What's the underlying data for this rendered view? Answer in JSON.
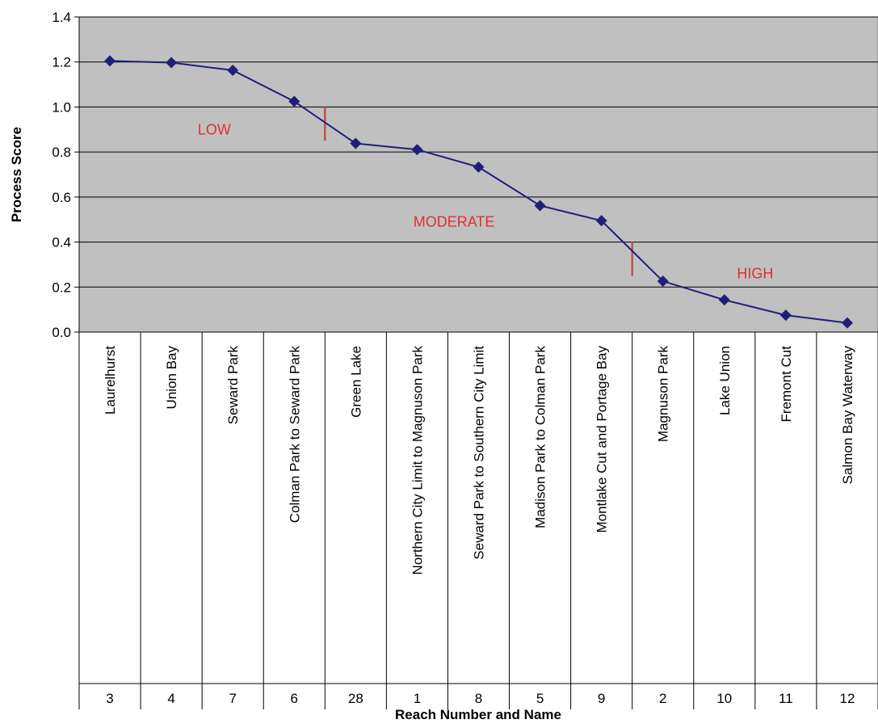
{
  "chart_data": {
    "type": "line",
    "title": "",
    "xlabel": "Reach Number and Name",
    "ylabel": "Process Score",
    "ylim": [
      0,
      1.4
    ],
    "yticks": [
      "0.0",
      "0.2",
      "0.4",
      "0.6",
      "0.8",
      "1.0",
      "1.2",
      "1.4"
    ],
    "grid": true,
    "legend": "none",
    "categories": [
      {
        "name": "Laurelhurst",
        "number": "3"
      },
      {
        "name": "Union Bay",
        "number": "4"
      },
      {
        "name": "Seward Park",
        "number": "7"
      },
      {
        "name": "Colman Park to Seward Park",
        "number": "6"
      },
      {
        "name": "Green Lake",
        "number": "28"
      },
      {
        "name": "Northern City Limit to Magnuson Park",
        "number": "1"
      },
      {
        "name": "Seward Park to Southern City Limit",
        "number": "8"
      },
      {
        "name": "Madison Park to Colman Park",
        "number": "5"
      },
      {
        "name": "Montlake Cut and Portage Bay",
        "number": "9"
      },
      {
        "name": "Magnuson Park",
        "number": "2"
      },
      {
        "name": "Lake Union",
        "number": "10"
      },
      {
        "name": "Fremont Cut",
        "number": "11"
      },
      {
        "name": "Salmon Bay Waterway",
        "number": "12"
      }
    ],
    "values": [
      1.205,
      1.197,
      1.163,
      1.025,
      0.838,
      0.811,
      0.733,
      0.562,
      0.495,
      0.226,
      0.143,
      0.075,
      0.041
    ],
    "annotations": [
      {
        "text": "LOW",
        "x_index": 1.7,
        "y": 0.9
      },
      {
        "text": "MODERATE",
        "x_index": 5.6,
        "y": 0.49
      },
      {
        "text": "HIGH",
        "x_index": 10.5,
        "y": 0.26
      }
    ],
    "dividers": [
      {
        "after_index": 3.5,
        "y_from": 0.85,
        "y_to": 1.0
      },
      {
        "after_index": 8.5,
        "y_from": 0.25,
        "y_to": 0.4
      }
    ],
    "colors": {
      "plot_background": "#c0c0c0",
      "line": "#1f1f7a",
      "annotation": "#e03030",
      "divider": "#c0504d"
    }
  }
}
